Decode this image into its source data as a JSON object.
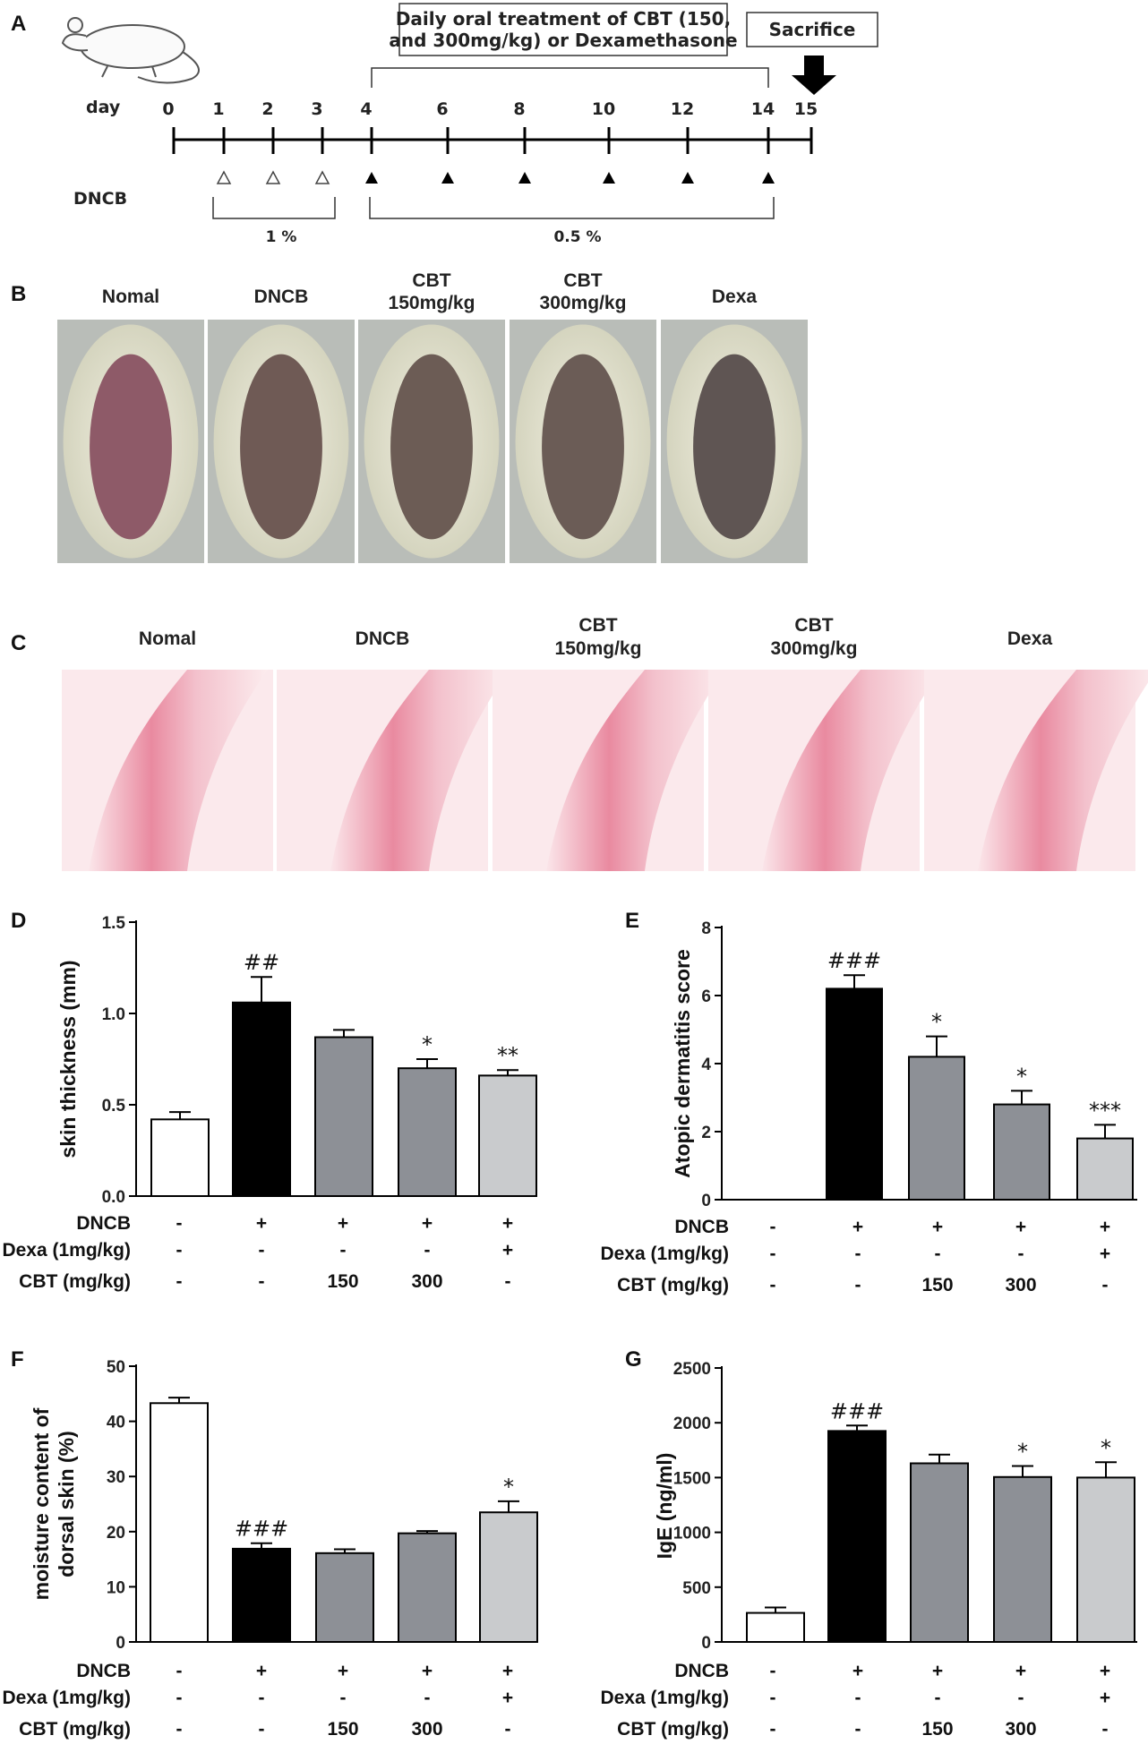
{
  "panel_letters": [
    "A",
    "B",
    "C",
    "D",
    "E",
    "F",
    "G"
  ],
  "timeline": {
    "day_label": "day",
    "days": [
      "0",
      "1",
      "2",
      "3",
      "4",
      "6",
      "8",
      "10",
      "12",
      "14",
      "15"
    ],
    "treatment_text_line1": "Daily oral treatment of CBT (150,",
    "treatment_text_line2": "and 300mg/kg) or Dexamethasone",
    "sacrifice_label": "Sacrifice",
    "dncb_label": "DNCB",
    "phase1_label": "1 %",
    "phase2_label": "0.5 %"
  },
  "photo_groups_B": [
    {
      "line1": "Nomal",
      "line2": ""
    },
    {
      "line1": "DNCB",
      "line2": ""
    },
    {
      "line1": "CBT",
      "line2": "150mg/kg"
    },
    {
      "line1": "CBT",
      "line2": "300mg/kg"
    },
    {
      "line1": "Dexa",
      "line2": ""
    }
  ],
  "histo_groups_C": [
    {
      "line1": "Nomal",
      "line2": ""
    },
    {
      "line1": "DNCB",
      "line2": ""
    },
    {
      "line1": "CBT",
      "line2": "150mg/kg"
    },
    {
      "line1": "CBT",
      "line2": "300mg/kg"
    },
    {
      "line1": "Dexa",
      "line2": ""
    }
  ],
  "condition_table": {
    "row_labels": [
      "DNCB",
      "Dexa (1mg/kg)",
      "CBT (mg/kg)"
    ],
    "DNCB": [
      "-",
      "+",
      "+",
      "+",
      "+"
    ],
    "Dexa": [
      "-",
      "-",
      "-",
      "-",
      "+"
    ],
    "CBT": [
      "-",
      "-",
      "150",
      "300",
      "-"
    ]
  },
  "colors": {
    "normal": "#ffffff",
    "dncb": "#000000",
    "cbt150": "#8d9096",
    "cbt300": "#8d9096",
    "dexa": "#c9cbcd"
  },
  "chart_data": [
    {
      "id": "D",
      "type": "bar",
      "ylabel": "skin thickness (mm)",
      "ylim": [
        0,
        1.5
      ],
      "yticks": [
        "0.0",
        "0.5",
        "1.0",
        "1.5"
      ],
      "values": [
        0.42,
        1.06,
        0.87,
        0.7,
        0.66
      ],
      "errors": [
        0.04,
        0.14,
        0.04,
        0.05,
        0.03
      ],
      "sig": [
        "",
        "##",
        "",
        "*",
        "**"
      ]
    },
    {
      "id": "E",
      "type": "bar",
      "ylabel": "Atopic dermatitis score",
      "ylim": [
        0,
        8
      ],
      "yticks": [
        "0",
        "2",
        "4",
        "6",
        "8"
      ],
      "values": [
        0,
        6.2,
        4.2,
        2.8,
        1.8
      ],
      "errors": [
        0,
        0.4,
        0.6,
        0.4,
        0.4
      ],
      "sig": [
        "",
        "###",
        "*",
        "*",
        "***"
      ]
    },
    {
      "id": "F",
      "type": "bar",
      "ylabel_line1": "moisture content of",
      "ylabel_line2": "dorsal skin (%)",
      "ylim": [
        0,
        50
      ],
      "yticks": [
        "0",
        "10",
        "20",
        "30",
        "40",
        "50"
      ],
      "values": [
        43.3,
        16.9,
        16.1,
        19.7,
        23.5
      ],
      "errors": [
        1.0,
        1.0,
        0.7,
        0.4,
        2.0
      ],
      "sig": [
        "",
        "###",
        "",
        "",
        "*"
      ]
    },
    {
      "id": "G",
      "type": "bar",
      "ylabel": "IgE (ng/ml)",
      "ylim": [
        0,
        2500
      ],
      "yticks": [
        "0",
        "500",
        "1000",
        "1500",
        "2000",
        "2500"
      ],
      "values": [
        265,
        1925,
        1630,
        1505,
        1500
      ],
      "errors": [
        50,
        50,
        80,
        100,
        140
      ],
      "sig": [
        "",
        "###",
        "",
        "*",
        "*"
      ]
    }
  ]
}
